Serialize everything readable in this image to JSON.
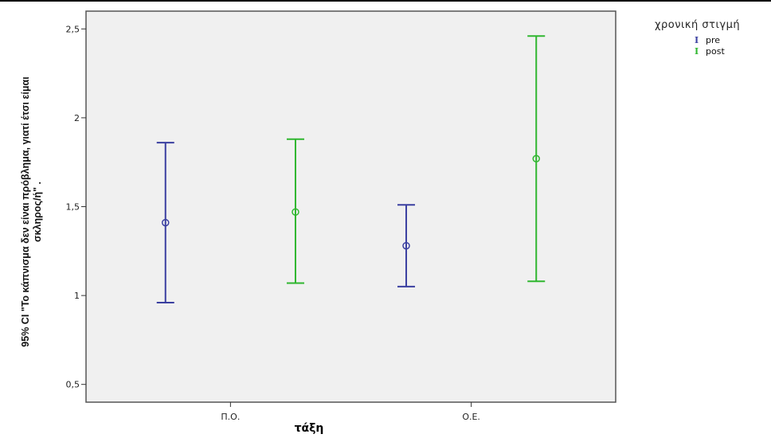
{
  "chart_data": {
    "type": "errorbar",
    "xlabel": "τάξη",
    "ylabel_line1": "95% CI \"Το κάπνισμα δεν είναι πρόβλημα, γιατί έτσι είμαι",
    "ylabel_line2": "σκληρος/ή\" .",
    "categories": [
      "Π.Ο.",
      "Ο.Ε."
    ],
    "ylim": [
      0.5,
      2.5
    ],
    "yticks": [
      "0,5",
      "1",
      "1,5",
      "2",
      "2,5"
    ],
    "ytick_values": [
      0.5,
      1,
      1.5,
      2,
      2.5
    ],
    "legend_title": "χρονική στιγμή",
    "legend_position": "top-right",
    "series": [
      {
        "name": "pre",
        "color": "#3a3fa0",
        "points": [
          {
            "category": "Π.Ο.",
            "mean": 1.41,
            "lower": 0.96,
            "upper": 1.86
          },
          {
            "category": "Ο.Ε.",
            "mean": 1.28,
            "lower": 1.05,
            "upper": 1.51
          }
        ]
      },
      {
        "name": "post",
        "color": "#2fb62f",
        "points": [
          {
            "category": "Π.Ο.",
            "mean": 1.47,
            "lower": 1.07,
            "upper": 1.88
          },
          {
            "category": "Ο.Ε.",
            "mean": 1.77,
            "lower": 1.08,
            "upper": 2.46
          }
        ]
      }
    ]
  }
}
